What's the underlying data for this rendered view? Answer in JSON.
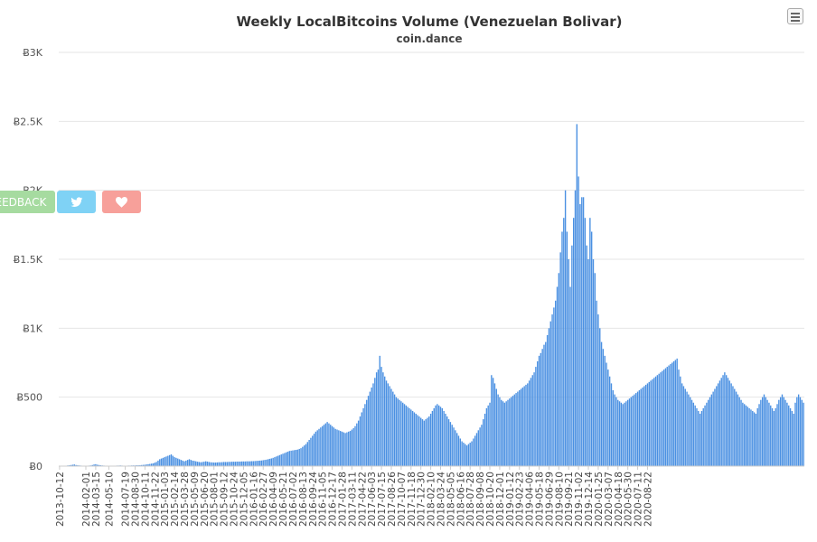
{
  "colors": {
    "bar": "#4a90e2",
    "grid": "#e6e6e6",
    "feedback": "#a6dba0",
    "twitter": "#7fd2f5",
    "heart": "#f7a09a"
  },
  "buttons": {
    "feedback_label": "FEEDBACK",
    "twitter_icon": "twitter-bird-icon",
    "heart_icon": "heart-icon",
    "menu_icon": "hamburger-menu-icon"
  },
  "chart_data": {
    "type": "bar",
    "title": "Weekly LocalBitcoins Volume (Venezuelan Bolivar)",
    "subtitle": "coin.dance",
    "ylim": [
      0,
      3000
    ],
    "yticks": [
      0,
      500,
      1000,
      1500,
      2000,
      2500,
      3000
    ],
    "ytick_labels": [
      "Ƀ0",
      "Ƀ500",
      "Ƀ1K",
      "Ƀ1.5K",
      "Ƀ2K",
      "Ƀ2.5K",
      "Ƀ3K"
    ],
    "first_week": "2013-10-12",
    "week_step_days": 7,
    "x_tick_labels": [
      "2013-10-12",
      "2014-02-01",
      "2014-03-15",
      "2014-05-10",
      "2014-07-19",
      "2014-08-30",
      "2014-10-11",
      "2014-11-22",
      "2015-01-03",
      "2015-02-14",
      "2015-03-28",
      "2015-05-09",
      "2015-06-20",
      "2015-08-01",
      "2015-09-12",
      "2015-10-24",
      "2015-12-05",
      "2016-01-16",
      "2016-02-27",
      "2016-04-09",
      "2016-05-21",
      "2016-07-02",
      "2016-08-13",
      "2016-09-24",
      "2016-11-05",
      "2016-12-17",
      "2017-01-28",
      "2017-03-11",
      "2017-04-22",
      "2017-06-03",
      "2017-07-15",
      "2017-08-26",
      "2017-10-07",
      "2017-11-18",
      "2017-12-30",
      "2018-02-10",
      "2018-03-24",
      "2018-05-05",
      "2018-06-16",
      "2018-07-28",
      "2018-09-08",
      "2018-10-20",
      "2018-12-01",
      "2019-01-12",
      "2019-02-23",
      "2019-04-06",
      "2019-05-18",
      "2019-06-29",
      "2019-08-10",
      "2019-09-21",
      "2019-11-02",
      "2019-12-14",
      "2020-01-25",
      "2020-03-07",
      "2020-04-18",
      "2020-05-30",
      "2020-07-11",
      "2020-08-22"
    ],
    "grid": true,
    "legend": "none",
    "values": [
      0,
      1,
      0,
      2,
      3,
      5,
      6,
      8,
      10,
      12,
      8,
      6,
      5,
      4,
      3,
      2,
      2,
      3,
      4,
      5,
      8,
      12,
      14,
      10,
      8,
      6,
      5,
      4,
      3,
      2,
      2,
      2,
      3,
      3,
      3,
      4,
      4,
      5,
      4,
      3,
      3,
      3,
      4,
      4,
      5,
      5,
      5,
      6,
      6,
      7,
      8,
      9,
      10,
      12,
      14,
      16,
      18,
      20,
      25,
      30,
      40,
      50,
      55,
      60,
      65,
      70,
      75,
      80,
      85,
      75,
      65,
      60,
      55,
      50,
      45,
      40,
      35,
      40,
      45,
      50,
      45,
      40,
      38,
      35,
      32,
      30,
      28,
      30,
      32,
      35,
      33,
      30,
      28,
      27,
      26,
      26,
      27,
      28,
      28,
      29,
      30,
      30,
      30,
      31,
      31,
      32,
      32,
      32,
      33,
      33,
      33,
      34,
      34,
      34,
      35,
      35,
      35,
      36,
      36,
      37,
      38,
      39,
      40,
      41,
      43,
      45,
      47,
      50,
      53,
      56,
      60,
      65,
      70,
      75,
      80,
      85,
      90,
      95,
      100,
      105,
      110,
      112,
      114,
      116,
      118,
      120,
      125,
      130,
      140,
      150,
      160,
      175,
      190,
      205,
      220,
      235,
      250,
      260,
      270,
      280,
      290,
      300,
      310,
      320,
      310,
      300,
      290,
      280,
      270,
      265,
      260,
      255,
      250,
      245,
      240,
      245,
      250,
      255,
      265,
      275,
      290,
      310,
      330,
      360,
      390,
      420,
      450,
      480,
      510,
      540,
      570,
      600,
      640,
      680,
      700,
      800,
      720,
      680,
      650,
      620,
      600,
      580,
      560,
      540,
      520,
      500,
      490,
      480,
      470,
      460,
      450,
      440,
      430,
      420,
      410,
      400,
      390,
      380,
      370,
      360,
      350,
      340,
      330,
      340,
      350,
      360,
      380,
      400,
      420,
      440,
      450,
      440,
      430,
      420,
      400,
      380,
      360,
      340,
      320,
      300,
      280,
      260,
      240,
      220,
      200,
      180,
      170,
      160,
      150,
      160,
      170,
      180,
      200,
      220,
      240,
      260,
      280,
      300,
      340,
      380,
      420,
      440,
      460,
      660,
      640,
      600,
      560,
      520,
      500,
      480,
      470,
      460,
      470,
      480,
      490,
      500,
      510,
      520,
      530,
      540,
      550,
      560,
      570,
      580,
      590,
      600,
      620,
      640,
      660,
      680,
      720,
      760,
      800,
      820,
      850,
      880,
      900,
      950,
      1000,
      1050,
      1100,
      1150,
      1200,
      1300,
      1400,
      1550,
      1700,
      1800,
      2000,
      1700,
      1500,
      1300,
      1600,
      1800,
      2000,
      2480,
      2100,
      1900,
      1950,
      1950,
      1800,
      1600,
      1500,
      1800,
      1700,
      1500,
      1400,
      1200,
      1100,
      1000,
      900,
      850,
      800,
      750,
      700,
      650,
      600,
      550,
      520,
      500,
      480,
      470,
      460,
      450,
      460,
      470,
      480,
      490,
      500,
      510,
      520,
      530,
      540,
      550,
      560,
      570,
      580,
      590,
      600,
      610,
      620,
      630,
      640,
      650,
      660,
      670,
      680,
      690,
      700,
      710,
      720,
      730,
      740,
      750,
      760,
      770,
      780,
      700,
      650,
      600,
      580,
      560,
      540,
      520,
      500,
      480,
      460,
      440,
      420,
      400,
      380,
      400,
      420,
      440,
      460,
      480,
      500,
      520,
      540,
      560,
      580,
      600,
      620,
      640,
      660,
      680,
      660,
      640,
      620,
      600,
      580,
      560,
      540,
      520,
      500,
      480,
      460,
      450,
      440,
      430,
      420,
      410,
      400,
      390,
      380,
      420,
      450,
      480,
      500,
      520,
      500,
      480,
      460,
      440,
      420,
      400,
      420,
      450,
      480,
      500,
      520,
      500,
      480,
      460,
      440,
      420,
      400,
      380,
      460,
      500,
      520,
      500,
      480,
      460
    ]
  }
}
